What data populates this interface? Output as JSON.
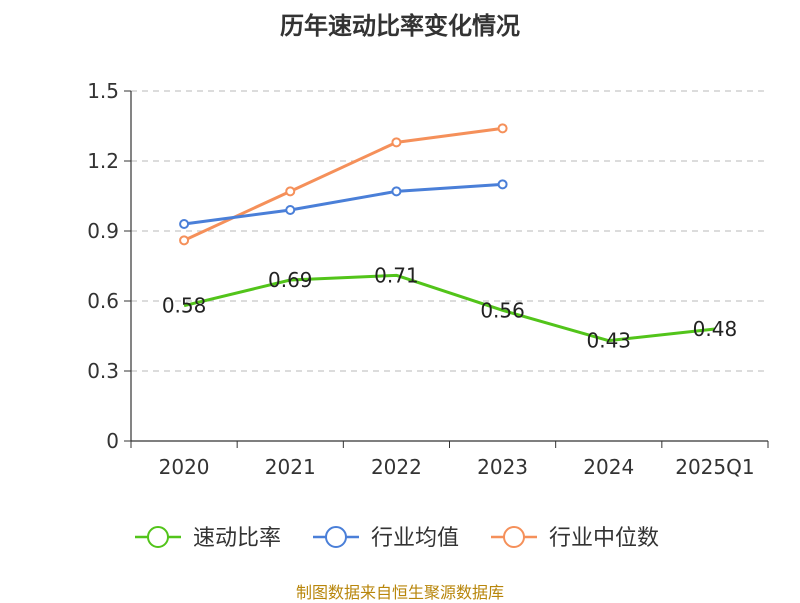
{
  "chart_data": {
    "type": "line",
    "title": "历年速动比率变化情况",
    "categories": [
      "2020",
      "2021",
      "2022",
      "2023",
      "2024",
      "2025Q1"
    ],
    "ylim": [
      0,
      1.5
    ],
    "yticks": [
      "0",
      "0.3",
      "0.6",
      "0.9",
      "1.2",
      "1.5"
    ],
    "grid": true,
    "legend_position": "bottom",
    "series": [
      {
        "name": "速动比率",
        "color": "#52c41a",
        "values": [
          0.58,
          0.69,
          0.71,
          0.56,
          0.43,
          0.48
        ],
        "labels": [
          "0.58",
          "0.69",
          "0.71",
          "0.56",
          "0.43",
          "0.48"
        ]
      },
      {
        "name": "行业均值",
        "color": "#4a7fd8",
        "values": [
          0.93,
          0.99,
          1.07,
          1.1,
          null,
          null
        ]
      },
      {
        "name": "行业中位数",
        "color": "#f5905a",
        "values": [
          0.86,
          1.07,
          1.28,
          1.34,
          null,
          null
        ]
      }
    ]
  },
  "source_text": "制图数据来自恒生聚源数据库"
}
